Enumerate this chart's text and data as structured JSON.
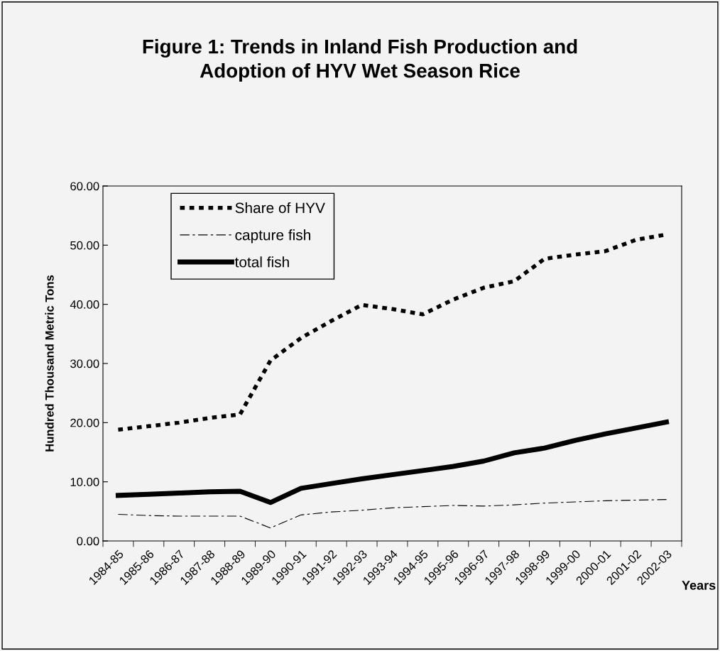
{
  "chart_data": {
    "type": "line",
    "title": "Figure 1: Trends in Inland Fish Production and\nAdoption of HYV Wet Season Rice",
    "xlabel": "Years",
    "ylabel": "Hundred Thousand Metric Tons",
    "categories": [
      "1984-85",
      "1985-86",
      "1986-87",
      "1987-88",
      "1988-89",
      "1989-90",
      "1990-91",
      "1991-92",
      "1992-93",
      "1993-94",
      "1994-95",
      "1995-96",
      "1996-97",
      "1997-98",
      "1998-99",
      "1999-00",
      "2000-01",
      "2001-02",
      "2002-03"
    ],
    "series": [
      {
        "name": "Share of HYV",
        "color": "#000000",
        "line_style": "dashed",
        "values": [
          18.8,
          19.4,
          20.0,
          20.8,
          21.4,
          30.5,
          34.3,
          37.2,
          39.9,
          39.2,
          38.3,
          40.8,
          42.8,
          43.9,
          47.7,
          48.4,
          49.0,
          50.9,
          51.8
        ]
      },
      {
        "name": "capture fish",
        "color": "#000000",
        "line_style": "dashed",
        "values": [
          4.5,
          4.3,
          4.2,
          4.2,
          4.2,
          2.2,
          4.4,
          4.9,
          5.2,
          5.6,
          5.8,
          6.0,
          5.9,
          6.1,
          6.4,
          6.6,
          6.8,
          6.9,
          7.0
        ]
      },
      {
        "name": "total fish",
        "color": "#000000",
        "line_style": "solid",
        "values": [
          7.7,
          7.9,
          8.1,
          8.3,
          8.4,
          6.5,
          8.9,
          9.7,
          10.5,
          11.2,
          11.9,
          12.6,
          13.5,
          14.9,
          15.7,
          17.0,
          18.1,
          19.1,
          20.1
        ]
      }
    ],
    "ylim": [
      0,
      60
    ],
    "yticks": [
      {
        "value": 0,
        "label": "0.00"
      },
      {
        "value": 10,
        "label": "10.00"
      },
      {
        "value": 20,
        "label": "20.00"
      },
      {
        "value": 30,
        "label": "30.00"
      },
      {
        "value": 40,
        "label": "40.00"
      },
      {
        "value": 50,
        "label": "50.00"
      },
      {
        "value": 60,
        "label": "60.00"
      }
    ],
    "grid": false,
    "legend": "top left"
  }
}
